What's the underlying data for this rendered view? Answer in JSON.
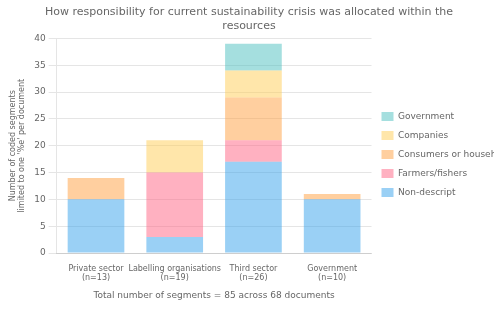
{
  "chart_data": {
    "type": "bar",
    "stacked": true,
    "title": "How responsibility for current sustainability crisis was allocated within the\nresources",
    "xlabel": "Total number of segments = 85 across 68 documents",
    "ylabel": "Number of coded segments limited to one '%e' per document",
    "categories": [
      "Private sector (n=13)",
      "Labelling organisations (n=19)",
      "Third sector (n=26)",
      "Government (n=10)"
    ],
    "series": [
      {
        "name": "Non-descript",
        "values": [
          10,
          3,
          17,
          10
        ]
      },
      {
        "name": "Farmers/fishers",
        "values": [
          0,
          12,
          4,
          0
        ]
      },
      {
        "name": "Consumers or households",
        "values": [
          4,
          0,
          8,
          1
        ]
      },
      {
        "name": "Companies",
        "values": [
          0,
          6,
          5,
          0
        ]
      },
      {
        "name": "Government",
        "values": [
          0,
          0,
          5,
          0
        ]
      }
    ],
    "ylim": [
      0,
      40
    ],
    "yticks": [
      0,
      5,
      10,
      15,
      20,
      25,
      30,
      35,
      40
    ],
    "grid": true,
    "legend": "right"
  }
}
